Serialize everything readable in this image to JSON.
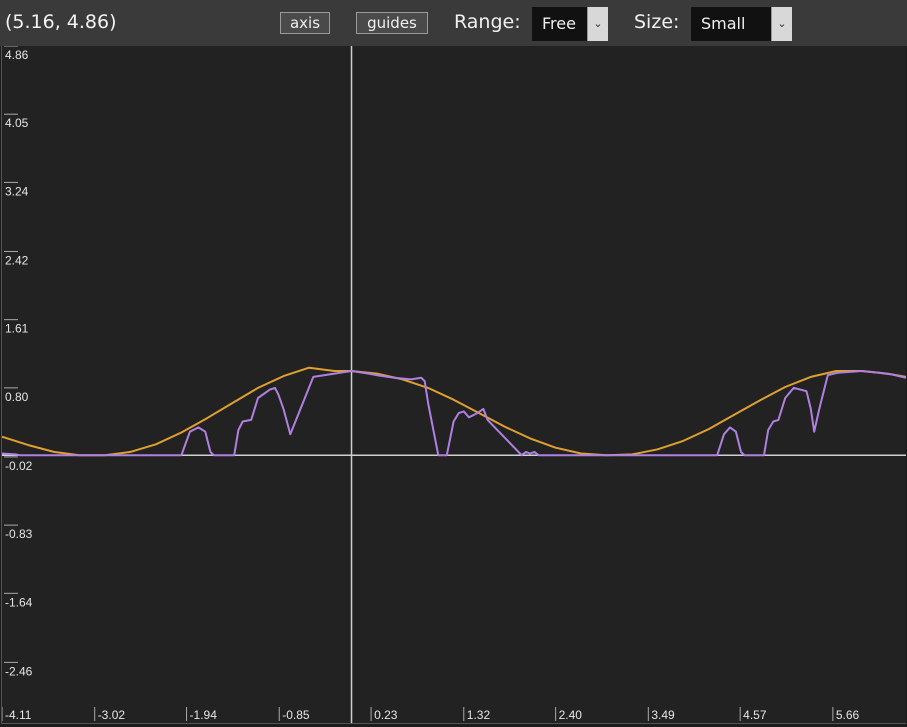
{
  "toolbar": {
    "coord_readout": "(5.16, 4.86)",
    "axis_label": "axis",
    "guides_label": "guides",
    "range_label": "Range:",
    "range_value": "Free",
    "size_label": "Size:",
    "size_value": "Small"
  },
  "colors": {
    "background": "#222222",
    "axis": "#d0d0d0",
    "series_smooth": "#e0a030",
    "series_detail": "#b080e0"
  },
  "chart_data": {
    "type": "line",
    "title": "",
    "xlabel": "",
    "ylabel": "",
    "xlim": [
      -4.11,
      6.52
    ],
    "ylim": [
      -3.18,
      4.86
    ],
    "x_ticks": [
      "-4.11",
      "-3.02",
      "-1.94",
      "-0.85",
      "0.23",
      "1.32",
      "2.40",
      "3.49",
      "4.57",
      "5.66"
    ],
    "x_tick_values": [
      -4.11,
      -3.02,
      -1.94,
      -0.85,
      0.23,
      1.32,
      2.4,
      3.49,
      4.57,
      5.66
    ],
    "y_ticks": [
      "4.86",
      "4.05",
      "3.24",
      "2.42",
      "1.61",
      "0.80",
      "-0.02",
      "-0.83",
      "-1.64",
      "-2.46"
    ],
    "y_tick_values": [
      4.86,
      4.05,
      3.24,
      2.42,
      1.61,
      0.8,
      -0.02,
      -0.83,
      -1.64,
      -2.46
    ],
    "series": [
      {
        "color": "#e0a030",
        "x": [
          -4.11,
          -3.8,
          -3.5,
          -3.2,
          -2.9,
          -2.6,
          -2.3,
          -2.0,
          -1.7,
          -1.4,
          -1.1,
          -0.8,
          -0.5,
          -0.2,
          0.0,
          0.3,
          0.6,
          0.9,
          1.2,
          1.5,
          1.8,
          2.1,
          2.4,
          2.7,
          3.0,
          3.3,
          3.6,
          3.9,
          4.2,
          4.5,
          4.8,
          5.1,
          5.4,
          5.7,
          6.0,
          6.3,
          6.52
        ],
        "y": [
          0.22,
          0.12,
          0.04,
          0.0,
          0.0,
          0.04,
          0.13,
          0.27,
          0.44,
          0.62,
          0.8,
          0.94,
          1.04,
          1.0,
          1.0,
          0.97,
          0.9,
          0.8,
          0.66,
          0.5,
          0.34,
          0.2,
          0.09,
          0.02,
          0.0,
          0.01,
          0.07,
          0.17,
          0.31,
          0.48,
          0.65,
          0.81,
          0.93,
          1.0,
          1.0,
          0.97,
          0.93
        ]
      },
      {
        "color": "#b080e0",
        "x": [
          -4.11,
          -3.95,
          -3.9,
          -2.0,
          -1.9,
          -1.8,
          -1.72,
          -1.66,
          -1.62,
          -1.38,
          -1.33,
          -1.28,
          -1.18,
          -1.1,
          -0.96,
          -0.9,
          -0.86,
          -0.8,
          -0.72,
          -0.6,
          -0.45,
          -0.2,
          0.0,
          0.2,
          0.3,
          0.5,
          0.7,
          0.82,
          0.86,
          0.9,
          1.02,
          1.08,
          1.12,
          1.2,
          1.26,
          1.32,
          1.38,
          1.48,
          1.55,
          1.6,
          2.0,
          2.05,
          2.1,
          2.15,
          2.2,
          4.3,
          4.38,
          4.45,
          4.52,
          4.58,
          4.62,
          4.85,
          4.9,
          4.96,
          5.02,
          5.1,
          5.2,
          5.35,
          5.4,
          5.44,
          5.5,
          5.6,
          5.72,
          6.0,
          6.2,
          6.35,
          6.52
        ],
        "y": [
          0.02,
          0.01,
          0.0,
          0.0,
          0.28,
          0.33,
          0.28,
          0.04,
          0.0,
          0.0,
          0.3,
          0.4,
          0.42,
          0.68,
          0.78,
          0.8,
          0.72,
          0.55,
          0.25,
          0.55,
          0.93,
          0.97,
          1.0,
          0.97,
          0.95,
          0.92,
          0.9,
          0.92,
          0.88,
          0.62,
          0.0,
          0.0,
          0.0,
          0.4,
          0.5,
          0.52,
          0.45,
          0.5,
          0.55,
          0.42,
          0.0,
          0.04,
          0.02,
          0.04,
          0.0,
          0.0,
          0.25,
          0.33,
          0.28,
          0.04,
          0.0,
          0.0,
          0.3,
          0.4,
          0.42,
          0.68,
          0.8,
          0.76,
          0.55,
          0.28,
          0.55,
          0.95,
          0.98,
          1.0,
          0.98,
          0.96,
          0.92
        ]
      }
    ],
    "crosshair_x": 0.0,
    "grid": false
  }
}
